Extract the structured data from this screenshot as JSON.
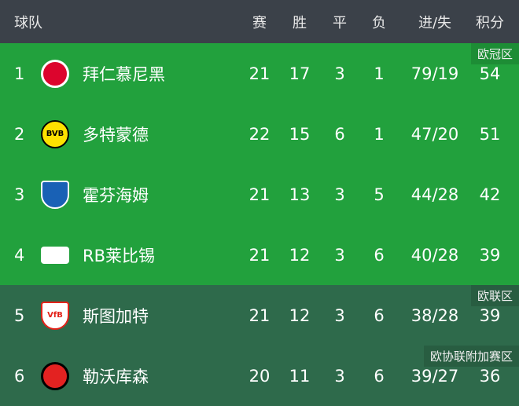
{
  "header": {
    "team": "球队",
    "played": "赛",
    "won": "胜",
    "drawn": "平",
    "lost": "负",
    "goals": "进/失",
    "points": "积分"
  },
  "rows": [
    {
      "rank": "1",
      "name": "拜仁慕尼黑",
      "played": "21",
      "won": "17",
      "drawn": "3",
      "lost": "1",
      "goals": "79/19",
      "points": "54",
      "zone": "欧冠区",
      "logo": "bayern-logo"
    },
    {
      "rank": "2",
      "name": "多特蒙德",
      "played": "22",
      "won": "15",
      "drawn": "6",
      "lost": "1",
      "goals": "47/20",
      "points": "51",
      "zone": "",
      "logo": "dortmund-logo",
      "logo_text": "BVB"
    },
    {
      "rank": "3",
      "name": "霍芬海姆",
      "played": "21",
      "won": "13",
      "drawn": "3",
      "lost": "5",
      "goals": "44/28",
      "points": "42",
      "zone": "",
      "logo": "hoffenheim-logo"
    },
    {
      "rank": "4",
      "name": "RB莱比锡",
      "played": "21",
      "won": "12",
      "drawn": "3",
      "lost": "6",
      "goals": "40/28",
      "points": "39",
      "zone": "",
      "logo": "leipzig-logo"
    },
    {
      "rank": "5",
      "name": "斯图加特",
      "played": "21",
      "won": "12",
      "drawn": "3",
      "lost": "6",
      "goals": "38/28",
      "points": "39",
      "zone": "欧联区",
      "logo": "stuttgart-logo",
      "logo_text": "VfB"
    },
    {
      "rank": "6",
      "name": "勒沃库森",
      "played": "20",
      "won": "11",
      "drawn": "3",
      "lost": "6",
      "goals": "39/27",
      "points": "36",
      "zone": "欧协联附加赛区",
      "logo": "leverkusen-logo"
    }
  ],
  "colors": {
    "header": "#3b4149",
    "ucl": "#22a13d",
    "uel": "#2e6a4b"
  }
}
